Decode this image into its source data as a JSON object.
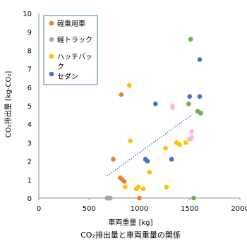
{
  "chart_data": {
    "type": "scatter",
    "title": "CO₂排出量と車両重量の関係",
    "xlabel": "車両重量 [kg]",
    "ylabel": "CO₂排出量 [kg-CO₂]",
    "xlim": [
      0,
      2000
    ],
    "ylim": [
      0,
      10
    ],
    "xticks": [
      0,
      500,
      1000,
      1500,
      2000
    ],
    "yticks": [
      0,
      1,
      2,
      3,
      4,
      5,
      6,
      7,
      8,
      9,
      10
    ],
    "grid": false,
    "legend_position": "top-left",
    "series": [
      {
        "name": "軽乗用車",
        "color": "#ED7D31",
        "points": [
          [
            680,
            0
          ],
          [
            710,
            0
          ],
          [
            740,
            2.1
          ],
          [
            810,
            1.1
          ],
          [
            820,
            5.6
          ],
          [
            830,
            1.0
          ],
          [
            850,
            0.9
          ],
          [
            1000,
            0
          ]
        ]
      },
      {
        "name": "軽トラック",
        "color": "#A5A5A5",
        "points": [
          [
            680,
            0
          ],
          [
            690,
            0
          ],
          [
            700,
            0
          ],
          [
            710,
            0
          ]
        ]
      },
      {
        "name": "ハッチバック",
        "color": "#FFC000",
        "points": [
          [
            860,
            0.6
          ],
          [
            900,
            6.1
          ],
          [
            910,
            3.1
          ],
          [
            970,
            0.5
          ],
          [
            990,
            0.6
          ],
          [
            1040,
            0.5
          ],
          [
            1100,
            1.4
          ],
          [
            1260,
            2.7
          ],
          [
            1270,
            0.6
          ],
          [
            1370,
            3.0
          ],
          [
            1400,
            2.9
          ],
          [
            1460,
            3.0
          ],
          [
            1500,
            3.2
          ]
        ]
      },
      {
        "name": "セダン",
        "color": "#4472C4",
        "points": [
          [
            1060,
            2.1
          ],
          [
            1080,
            2.0
          ],
          [
            1160,
            5.1
          ],
          [
            1320,
            2.1
          ],
          [
            1500,
            5.5
          ],
          [
            1600,
            5.5
          ],
          [
            1600,
            7.5
          ]
        ]
      },
      {
        "name": "",
        "color": "#70AD47",
        "points": [
          [
            1490,
            5.1
          ],
          [
            1510,
            8.6
          ],
          [
            1540,
            0
          ],
          [
            1580,
            4.7
          ],
          [
            1610,
            4.6
          ]
        ]
      },
      {
        "name": "",
        "color": "#FFB6E1",
        "points": [
          [
            1330,
            5.0
          ],
          [
            1330,
            4.9
          ],
          [
            1510,
            3.2
          ],
          [
            1520,
            3.3
          ],
          [
            1520,
            3.6
          ]
        ]
      }
    ],
    "trendline": {
      "color": "#2E75B6",
      "style": "dotted",
      "from": [
        680,
        1.2
      ],
      "to": [
        1520,
        4.5
      ]
    }
  }
}
